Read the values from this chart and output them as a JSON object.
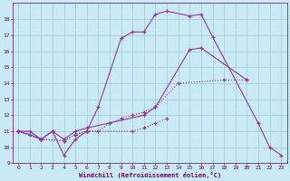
{
  "xlabel": "Windchill (Refroidissement éolien,°C)",
  "series1_x": [
    0,
    1,
    2,
    3,
    4,
    5,
    6,
    7,
    9,
    10,
    11,
    12,
    13,
    15,
    16,
    17,
    21,
    22,
    23
  ],
  "series1_y": [
    11,
    11,
    10.5,
    11,
    9.5,
    10.5,
    11,
    12.5,
    16.8,
    17.2,
    17.2,
    18.3,
    18.5,
    18.2,
    18.3,
    16.9,
    11.5,
    10,
    9.5
  ],
  "series2_x": [
    0,
    1,
    2,
    3,
    4,
    5,
    6,
    11,
    12,
    15,
    16,
    20
  ],
  "series2_y": [
    11,
    10.8,
    10.5,
    11,
    10.5,
    11,
    11.2,
    12,
    12.5,
    16.1,
    16.2,
    14.2
  ],
  "series3_x": [
    0,
    2,
    4,
    5,
    6,
    10,
    11,
    12,
    13
  ],
  "series3_y": [
    11,
    10.5,
    10.4,
    10.8,
    11,
    11,
    11.2,
    11.5,
    11.8
  ],
  "series4_x": [
    0,
    2,
    4,
    5,
    6,
    7,
    8,
    9,
    10,
    11,
    12,
    14,
    18,
    20
  ],
  "series4_y": [
    11,
    10.5,
    10.4,
    10.8,
    11,
    11,
    11.5,
    11.8,
    12,
    12.2,
    12.5,
    14,
    14.2,
    14.2
  ],
  "line_color": "#993399",
  "bg_color": "#c8eaf4",
  "grid_color": "#aaccdd",
  "text_color": "#660066",
  "xlim": [
    -0.5,
    23.5
  ],
  "ylim": [
    9,
    19
  ],
  "yticks": [
    9,
    10,
    11,
    12,
    13,
    14,
    15,
    16,
    17,
    18
  ],
  "xticks": [
    0,
    1,
    2,
    3,
    4,
    5,
    6,
    7,
    8,
    9,
    10,
    11,
    12,
    13,
    14,
    15,
    16,
    17,
    18,
    19,
    20,
    21,
    22,
    23
  ]
}
